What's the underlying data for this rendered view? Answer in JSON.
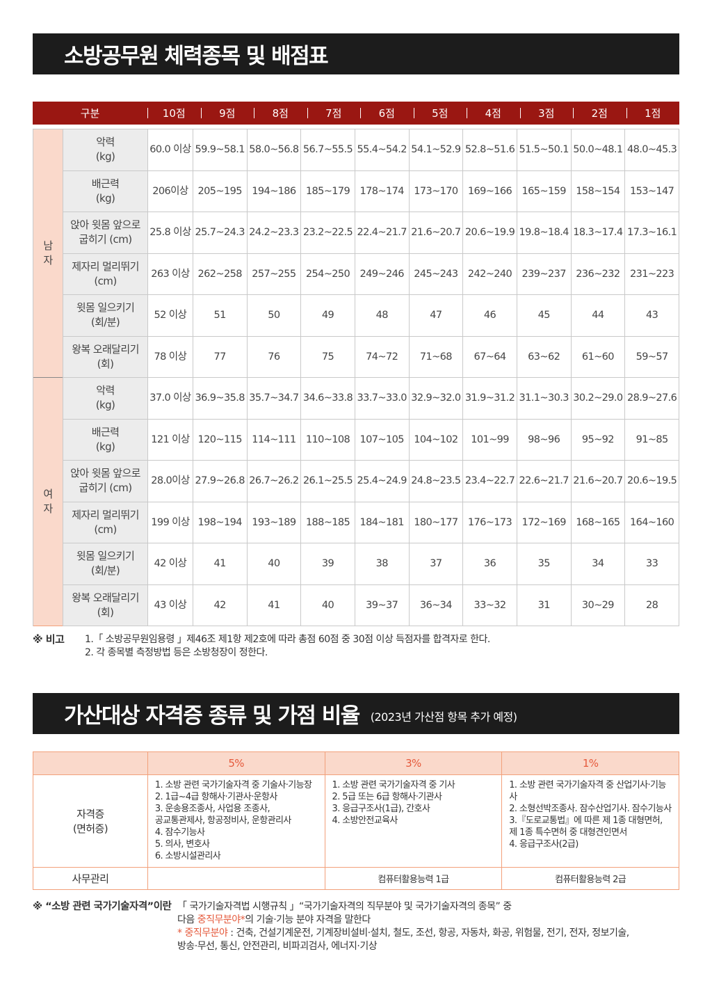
{
  "title1": "소방공무원 체력종목 및 배점표",
  "table1": {
    "headers": [
      "구분",
      "10점",
      "9점",
      "8점",
      "7점",
      "6점",
      "5점",
      "4점",
      "3점",
      "2점",
      "1점"
    ],
    "groups": [
      {
        "label": "남\n자",
        "rows": [
          {
            "item": "악력\n(kg)",
            "values": [
              "60.0 이상",
              "59.9~58.1",
              "58.0~56.8",
              "56.7~55.5",
              "55.4~54.2",
              "54.1~52.9",
              "52.8~51.6",
              "51.5~50.1",
              "50.0~48.1",
              "48.0~45.3"
            ]
          },
          {
            "item": "배근력\n(kg)",
            "values": [
              "206이상",
              "205~195",
              "194~186",
              "185~179",
              "178~174",
              "173~170",
              "169~166",
              "165~159",
              "158~154",
              "153~147"
            ]
          },
          {
            "item": "앉아 윗몸 앞으로\n굽히기 (cm)",
            "values": [
              "25.8 이상",
              "25.7~24.3",
              "24.2~23.3",
              "23.2~22.5",
              "22.4~21.7",
              "21.6~20.7",
              "20.6~19.9",
              "19.8~18.4",
              "18.3~17.4",
              "17.3~16.1"
            ]
          },
          {
            "item": "제자리 멀리뛰기\n(cm)",
            "values": [
              "263 이상",
              "262~258",
              "257~255",
              "254~250",
              "249~246",
              "245~243",
              "242~240",
              "239~237",
              "236~232",
              "231~223"
            ]
          },
          {
            "item": "윗몸 일으키기\n(회/분)",
            "values": [
              "52 이상",
              "51",
              "50",
              "49",
              "48",
              "47",
              "46",
              "45",
              "44",
              "43"
            ]
          },
          {
            "item": "왕복 오래달리기\n(회)",
            "values": [
              "78 이상",
              "77",
              "76",
              "75",
              "74~72",
              "71~68",
              "67~64",
              "63~62",
              "61~60",
              "59~57"
            ]
          }
        ]
      },
      {
        "label": "여\n자",
        "rows": [
          {
            "item": "악력\n(kg)",
            "values": [
              "37.0 이상",
              "36.9~35.8",
              "35.7~34.7",
              "34.6~33.8",
              "33.7~33.0",
              "32.9~32.0",
              "31.9~31.2",
              "31.1~30.3",
              "30.2~29.0",
              "28.9~27.6"
            ]
          },
          {
            "item": "배근력\n(kg)",
            "values": [
              "121 이상",
              "120~115",
              "114~111",
              "110~108",
              "107~105",
              "104~102",
              "101~99",
              "98~96",
              "95~92",
              "91~85"
            ]
          },
          {
            "item": "앉아 윗몸 앞으로\n굽히기 (cm)",
            "values": [
              "28.0이상",
              "27.9~26.8",
              "26.7~26.2",
              "26.1~25.5",
              "25.4~24.9",
              "24.8~23.5",
              "23.4~22.7",
              "22.6~21.7",
              "21.6~20.7",
              "20.6~19.5"
            ]
          },
          {
            "item": "제자리 멀리뛰기\n(cm)",
            "values": [
              "199 이상",
              "198~194",
              "193~189",
              "188~185",
              "184~181",
              "180~177",
              "176~173",
              "172~169",
              "168~165",
              "164~160"
            ]
          },
          {
            "item": "윗몸 일으키기\n(회/분)",
            "values": [
              "42 이상",
              "41",
              "40",
              "39",
              "38",
              "37",
              "36",
              "35",
              "34",
              "33"
            ]
          },
          {
            "item": "왕복 오래달리기\n(회)",
            "values": [
              "43 이상",
              "42",
              "41",
              "40",
              "39~37",
              "36~34",
              "33~32",
              "31",
              "30~29",
              "28"
            ]
          }
        ]
      }
    ]
  },
  "remarks": {
    "label": "※ 비고",
    "lines": [
      "1.「 소방공무원임용령 」제46조 제1항 제2호에 따라 총점 60점 중 30점 이상 득점자를 합격자로 한다.",
      "2. 각 종목별 측정방법 등은 소방청장이 정한다."
    ]
  },
  "title2": "가산대상 자격증 종류 및 가점 비율",
  "title2_sub": "(2023년 가산점 항목 추가 예정)",
  "table2": {
    "headers": [
      "",
      "5%",
      "3%",
      "1%"
    ],
    "cert_label": "자격증\n(면허증)",
    "cert_lists": [
      "1. 소방 관련 국가기술자격 중 기술사·기능장\n2. 1급~4급 항해사·기관사·운항사\n3. 운송용조종사, 사업용 조종사,\n    공교통관제사, 항공정비사, 운항관리사\n4. 잠수기능사\n5. 의사, 변호사\n6. 소방시설관리사",
      "1. 소방 관련 국가기술자격 중 기사\n2. 5급 또는 6급 항해사·기관사\n3. 응급구조사(1급), 간호사\n4. 소방안전교육사",
      "1. 소방 관련 국가기술자격 중 산업기사·기능사\n2. 소형선박조종사. 잠수산업기사. 잠수기능사\n3.『도로교통법』에 따른 제 1종 대형면허,\n    제 1종 특수면허 중 대형견인면서\n4. 응급구조사(2급)"
    ],
    "office_label": "사무관리",
    "office_values": [
      "",
      "컴퓨터활용능력 1급",
      "컴퓨터활용능력 2급"
    ]
  },
  "footnote": {
    "label": "※ “소방 관련 국가기술자격”이란",
    "line1": "「 국가기술자격법 시행규칙 」“국가기술자격의 직무분야 및 국가기술자격의 종목” 중",
    "line2_pre": "다음 ",
    "line2_red": "중직무분야*",
    "line2_post": "의 기술·기능 분야 자격을 말한다",
    "line3_red": "* 중직무분야",
    "line3_post": " : 건축, 건설기계운전, 기계장비설비·설치, 철도, 조선, 항공, 자동차, 화공, 위험물, 전기, 전자, 정보기술,",
    "line4": "방송·무선, 통신, 안전관리, 비파괴검사, 에너지·기상"
  },
  "colors": {
    "header_red": "#9a1712",
    "peach": "#fad9cb",
    "accent": "#e5593b",
    "title_bar": "#1c1c1c"
  }
}
